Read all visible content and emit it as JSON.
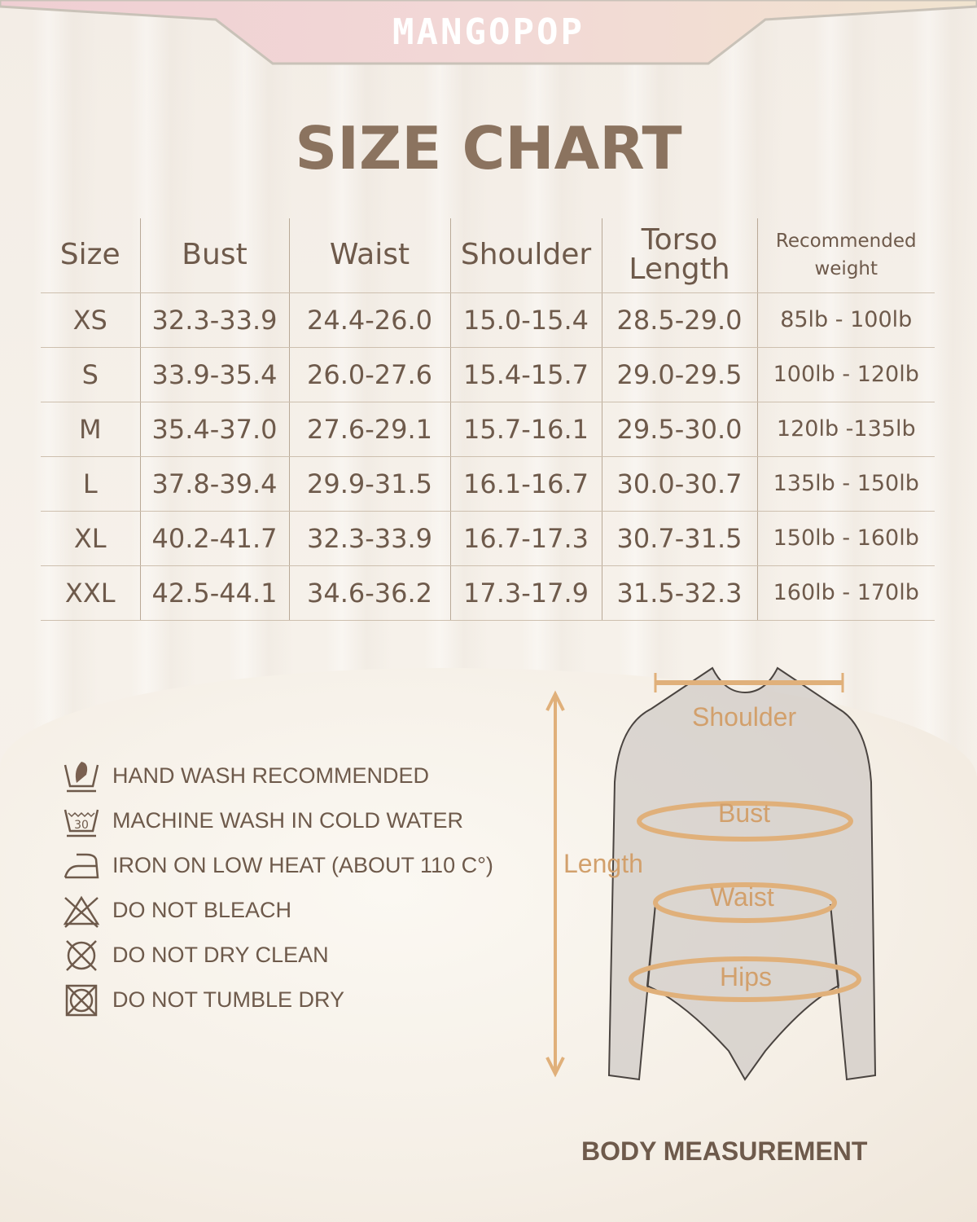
{
  "brand": "MANGOPOP",
  "title": "SIZE CHART",
  "table": {
    "headers": [
      "Size",
      "Bust",
      "Waist",
      "Shoulder",
      "Torso Length",
      "Recommended weight"
    ],
    "rows": [
      [
        "XS",
        "32.3-33.9",
        "24.4-26.0",
        "15.0-15.4",
        "28.5-29.0",
        "85lb - 100lb"
      ],
      [
        "S",
        "33.9-35.4",
        "26.0-27.6",
        "15.4-15.7",
        "29.0-29.5",
        "100lb - 120lb"
      ],
      [
        "M",
        "35.4-37.0",
        "27.6-29.1",
        "15.7-16.1",
        "29.5-30.0",
        "120lb -135lb"
      ],
      [
        "L",
        "37.8-39.4",
        "29.9-31.5",
        "16.1-16.7",
        "30.0-30.7",
        "135lb - 150lb"
      ],
      [
        "XL",
        "40.2-41.7",
        "32.3-33.9",
        "16.7-17.3",
        "30.7-31.5",
        "150lb - 160lb"
      ],
      [
        "XXL",
        "42.5-44.1",
        "34.6-36.2",
        "17.3-17.9",
        "31.5-32.3",
        "160lb - 170lb"
      ]
    ]
  },
  "care": [
    {
      "icon": "hand-wash-icon",
      "text": "HAND WASH RECOMMENDED"
    },
    {
      "icon": "machine-wash-30-icon",
      "text": "MACHINE WASH IN COLD WATER",
      "icon_label": "30"
    },
    {
      "icon": "iron-low-icon",
      "text": "IRON ON LOW HEAT (ABOUT 110 C°)"
    },
    {
      "icon": "no-bleach-icon",
      "text": "DO NOT BLEACH"
    },
    {
      "icon": "no-dry-clean-icon",
      "text": "DO NOT DRY CLEAN"
    },
    {
      "icon": "no-tumble-dry-icon",
      "text": "DO NOT TUMBLE DRY"
    }
  ],
  "diagram": {
    "shoulder": "Shoulder",
    "bust": "Bust",
    "waist": "Waist",
    "hips": "Hips",
    "length": "Length",
    "caption": "BODY MEASUREMENT"
  },
  "colors": {
    "text": "#6e5a4b",
    "title": "#8b735f",
    "accent": "#d2a06c"
  }
}
